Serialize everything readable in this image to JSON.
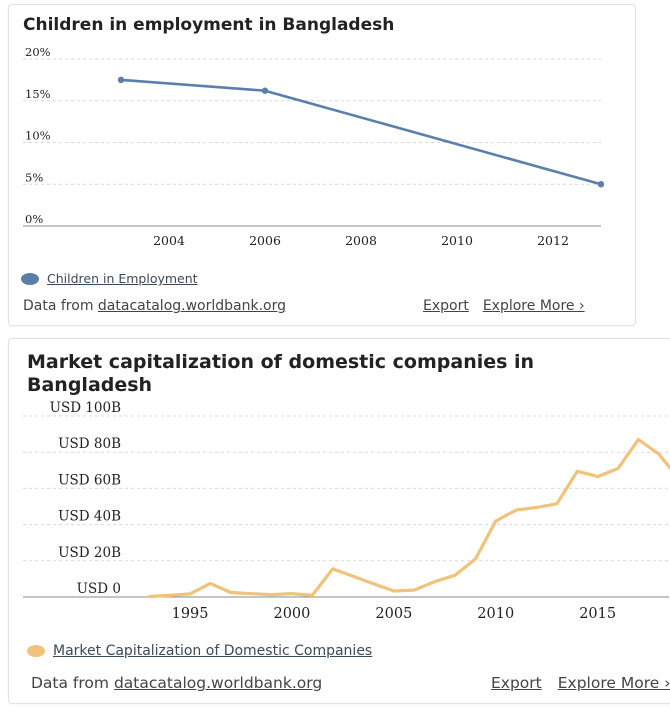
{
  "colors": {
    "card1_series": "#5b7fad",
    "card2_series": "#f0c27a",
    "gridline": "#d9d9d9",
    "axis": "#888888",
    "text": "#222222"
  },
  "card1": {
    "title": "Children in employment in Bangladesh",
    "legend_label": "Children in Employment",
    "source_prefix": "Data from",
    "source_link": "datacatalog.worldbank.org",
    "export_label": "Export",
    "explore_label": "Explore More ›"
  },
  "card2": {
    "title": "Market capitalization of domestic companies in Bangladesh",
    "legend_label": "Market Capitalization of Domestic Companies",
    "source_prefix": "Data from",
    "source_link": "datacatalog.worldbank.org",
    "export_label": "Export",
    "explore_label": "Explore More ›"
  },
  "chart_data": [
    {
      "type": "line",
      "title": "Children in employment in Bangladesh",
      "series": [
        {
          "name": "Children in Employment",
          "x": [
            2003,
            2006,
            2013
          ],
          "values": [
            17.5,
            16.2,
            5.0
          ]
        }
      ],
      "xlim": [
        2001,
        2013
      ],
      "ylim": [
        0,
        20
      ],
      "x_ticks": [
        2004,
        2006,
        2008,
        2010,
        2012
      ],
      "y_ticks": [
        0,
        5,
        10,
        15,
        20
      ],
      "y_tick_labels": [
        "0%",
        "5%",
        "10%",
        "15%",
        "20%"
      ],
      "grid": true,
      "legend": "bottom-left"
    },
    {
      "type": "line",
      "title": "Market capitalization of domestic companies in Bangladesh",
      "series": [
        {
          "name": "Market Capitalization of Domestic Companies",
          "x": [
            1993,
            1994,
            1995,
            1996,
            1997,
            1998,
            1999,
            2000,
            2001,
            2002,
            2003,
            2004,
            2005,
            2006,
            2007,
            2008,
            2009,
            2010,
            2011,
            2012,
            2013,
            2014,
            2015,
            2016,
            2017,
            2018,
            2019
          ],
          "values": [
            0.3,
            0.9,
            1.7,
            7.5,
            2.5,
            1.8,
            1.3,
            1.9,
            0.9,
            15.5,
            11.5,
            7.3,
            3.3,
            3.8,
            8.5,
            12.0,
            21.0,
            42.0,
            48.0,
            49.5,
            51.5,
            69.5,
            66.5,
            71.0,
            87.0,
            79.0,
            65.0
          ]
        }
      ],
      "xlim": [
        1987,
        2018.5
      ],
      "ylim": [
        0,
        100
      ],
      "x_ticks": [
        1995,
        2000,
        2005,
        2010,
        2015
      ],
      "y_ticks": [
        0,
        20,
        40,
        60,
        80,
        100
      ],
      "y_tick_labels": [
        "USD 0",
        "USD 20B",
        "USD 40B",
        "USD 60B",
        "USD 80B",
        "USD 100B"
      ],
      "grid": true,
      "legend": "bottom-left"
    }
  ]
}
